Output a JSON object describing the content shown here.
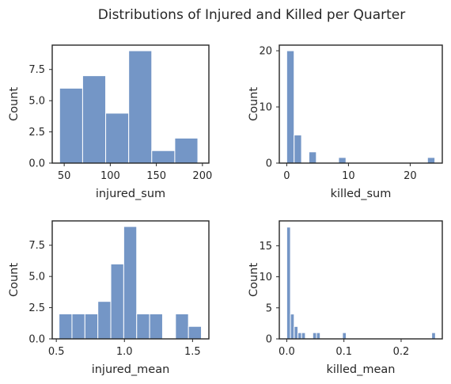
{
  "figure": {
    "title": "Distributions of Injured and Killed per Quarter"
  },
  "chart_data": [
    {
      "type": "bar",
      "kind": "histogram",
      "xlabel": "injured_sum",
      "ylabel": "Count",
      "xlim": [
        37,
        207
      ],
      "ylim": [
        0,
        9.45
      ],
      "xticks": [
        50,
        100,
        150,
        200
      ],
      "xticklabels": [
        "50",
        "100",
        "150",
        "200"
      ],
      "yticks": [
        0,
        2.5,
        5,
        7.5
      ],
      "yticklabels": [
        "0.0",
        "2.5",
        "5.0",
        "7.5"
      ],
      "bins": [
        {
          "x0": 45,
          "x1": 70,
          "count": 6
        },
        {
          "x0": 70,
          "x1": 95,
          "count": 7
        },
        {
          "x0": 95,
          "x1": 120,
          "count": 4
        },
        {
          "x0": 120,
          "x1": 145,
          "count": 9
        },
        {
          "x0": 145,
          "x1": 170,
          "count": 1
        },
        {
          "x0": 170,
          "x1": 195,
          "count": 2
        }
      ]
    },
    {
      "type": "bar",
      "kind": "histogram",
      "xlabel": "killed_sum",
      "ylabel": "Count",
      "xlim": [
        -1.2,
        25.2
      ],
      "ylim": [
        0,
        21
      ],
      "xticks": [
        0,
        10,
        20
      ],
      "xticklabels": [
        "0",
        "10",
        "20"
      ],
      "yticks": [
        0,
        10,
        20
      ],
      "yticklabels": [
        "0",
        "10",
        "20"
      ],
      "bins": [
        {
          "x0": 0,
          "x1": 1.2,
          "count": 20
        },
        {
          "x0": 1.2,
          "x1": 2.4,
          "count": 5
        },
        {
          "x0": 2.4,
          "x1": 3.6,
          "count": 0
        },
        {
          "x0": 3.6,
          "x1": 4.8,
          "count": 2
        },
        {
          "x0": 4.8,
          "x1": 6.0,
          "count": 0
        },
        {
          "x0": 6.0,
          "x1": 7.2,
          "count": 0
        },
        {
          "x0": 7.2,
          "x1": 8.4,
          "count": 0
        },
        {
          "x0": 8.4,
          "x1": 9.6,
          "count": 1
        },
        {
          "x0": 9.6,
          "x1": 10.8,
          "count": 0
        },
        {
          "x0": 10.8,
          "x1": 12.0,
          "count": 0
        },
        {
          "x0": 12.0,
          "x1": 13.2,
          "count": 0
        },
        {
          "x0": 13.2,
          "x1": 14.4,
          "count": 0
        },
        {
          "x0": 14.4,
          "x1": 15.6,
          "count": 0
        },
        {
          "x0": 15.6,
          "x1": 16.8,
          "count": 0
        },
        {
          "x0": 16.8,
          "x1": 18.0,
          "count": 0
        },
        {
          "x0": 18.0,
          "x1": 19.2,
          "count": 0
        },
        {
          "x0": 19.2,
          "x1": 20.4,
          "count": 0
        },
        {
          "x0": 20.4,
          "x1": 21.6,
          "count": 0
        },
        {
          "x0": 21.6,
          "x1": 22.8,
          "count": 0
        },
        {
          "x0": 22.8,
          "x1": 24.0,
          "count": 1
        }
      ]
    },
    {
      "type": "bar",
      "kind": "histogram",
      "xlabel": "injured_mean",
      "ylabel": "Count",
      "xlim": [
        0.47,
        1.62
      ],
      "ylim": [
        0,
        9.45
      ],
      "xticks": [
        0.5,
        1.0,
        1.5
      ],
      "xticklabels": [
        "0.5",
        "1.0",
        "1.5"
      ],
      "yticks": [
        0,
        2.5,
        5,
        7.5
      ],
      "yticklabels": [
        "0.0",
        "2.5",
        "5.0",
        "7.5"
      ],
      "bins": [
        {
          "x0": 0.52,
          "x1": 0.615,
          "count": 2
        },
        {
          "x0": 0.615,
          "x1": 0.71,
          "count": 2
        },
        {
          "x0": 0.71,
          "x1": 0.805,
          "count": 2
        },
        {
          "x0": 0.805,
          "x1": 0.9,
          "count": 3
        },
        {
          "x0": 0.9,
          "x1": 0.995,
          "count": 6
        },
        {
          "x0": 0.995,
          "x1": 1.09,
          "count": 9
        },
        {
          "x0": 1.09,
          "x1": 1.185,
          "count": 2
        },
        {
          "x0": 1.185,
          "x1": 1.28,
          "count": 2
        },
        {
          "x0": 1.28,
          "x1": 1.375,
          "count": 0
        },
        {
          "x0": 1.375,
          "x1": 1.47,
          "count": 2
        },
        {
          "x0": 1.47,
          "x1": 1.565,
          "count": 1
        }
      ]
    },
    {
      "type": "bar",
      "kind": "histogram",
      "xlabel": "killed_mean",
      "ylabel": "Count",
      "xlim": [
        -0.013,
        0.272
      ],
      "ylim": [
        0,
        19
      ],
      "xticks": [
        0.0,
        0.1,
        0.2
      ],
      "xticklabels": [
        "0.0",
        "0.1",
        "0.2"
      ],
      "yticks": [
        0,
        5,
        10,
        15
      ],
      "yticklabels": [
        "0",
        "5",
        "10",
        "15"
      ],
      "bins": [
        {
          "x0": 0.0,
          "x1": 0.0065,
          "count": 18
        },
        {
          "x0": 0.0065,
          "x1": 0.013,
          "count": 4
        },
        {
          "x0": 0.013,
          "x1": 0.0195,
          "count": 2
        },
        {
          "x0": 0.0195,
          "x1": 0.026,
          "count": 1
        },
        {
          "x0": 0.026,
          "x1": 0.0325,
          "count": 1
        },
        {
          "x0": 0.0325,
          "x1": 0.039,
          "count": 0
        },
        {
          "x0": 0.039,
          "x1": 0.0455,
          "count": 0
        },
        {
          "x0": 0.0455,
          "x1": 0.052,
          "count": 1
        },
        {
          "x0": 0.052,
          "x1": 0.0585,
          "count": 1
        },
        {
          "x0": 0.0585,
          "x1": 0.065,
          "count": 0
        },
        {
          "x0": 0.065,
          "x1": 0.0715,
          "count": 0
        },
        {
          "x0": 0.0715,
          "x1": 0.078,
          "count": 0
        },
        {
          "x0": 0.078,
          "x1": 0.0845,
          "count": 0
        },
        {
          "x0": 0.0845,
          "x1": 0.091,
          "count": 0
        },
        {
          "x0": 0.091,
          "x1": 0.0975,
          "count": 0
        },
        {
          "x0": 0.0975,
          "x1": 0.104,
          "count": 1
        },
        {
          "x0": 0.104,
          "x1": 0.2535,
          "count": 0
        },
        {
          "x0": 0.2535,
          "x1": 0.26,
          "count": 1
        }
      ]
    }
  ]
}
